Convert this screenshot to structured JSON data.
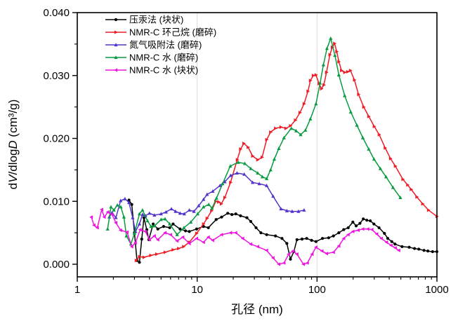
{
  "chart_data": {
    "type": "line",
    "title": "",
    "xlabel": "孔径 (nm)",
    "ylabel": "dV/dlogD (cm³/g)",
    "ylabel_segments": [
      {
        "t": "d"
      },
      {
        "t": "V",
        "italic": true
      },
      {
        "t": "/dlog"
      },
      {
        "t": "D",
        "italic": true
      },
      {
        "t": " (cm³/g)"
      }
    ],
    "axes": {
      "x": {
        "scale": "log",
        "min": 1,
        "max": 1000,
        "major_ticks": [
          1,
          10,
          100,
          1000
        ],
        "tick_labels": [
          "1",
          "10",
          "100",
          "1000"
        ]
      },
      "y": {
        "scale": "linear",
        "display_min": 0.0,
        "display_max": 0.04,
        "axis_min": -0.002,
        "major_step": 0.01,
        "minor_step": 0.005,
        "tick_labels": [
          "0.000",
          "0.010",
          "0.020",
          "0.030",
          "0.040"
        ]
      }
    },
    "grid": {
      "vertical_decades": [
        10,
        100
      ],
      "color": "#dcdcdc"
    },
    "legend_position": "top-left-inside",
    "series": [
      {
        "name": "压汞法 (块状)",
        "color": "#000000",
        "marker": "circle",
        "points": [
          [
            2.7,
            0.0102
          ],
          [
            2.85,
            0.0095
          ],
          [
            3.0,
            0.005
          ],
          [
            3.15,
            0.0006
          ],
          [
            3.3,
            0.0003
          ],
          [
            3.45,
            0.004
          ],
          [
            3.6,
            0.0074
          ],
          [
            3.8,
            0.0055
          ],
          [
            3.95,
            0.0039
          ],
          [
            4.3,
            0.0064
          ],
          [
            4.7,
            0.0056
          ],
          [
            5.25,
            0.006
          ],
          [
            5.9,
            0.0058
          ],
          [
            6.3,
            0.0064
          ],
          [
            7.2,
            0.0056
          ],
          [
            8.0,
            0.0053
          ],
          [
            8.6,
            0.0052
          ],
          [
            9.9,
            0.0056
          ],
          [
            11.3,
            0.006
          ],
          [
            12.4,
            0.0058
          ],
          [
            14.4,
            0.0071
          ],
          [
            16,
            0.0075
          ],
          [
            18,
            0.0081
          ],
          [
            19.5,
            0.0079
          ],
          [
            21,
            0.008
          ],
          [
            23,
            0.0077
          ],
          [
            26,
            0.0074
          ],
          [
            28,
            0.0068
          ],
          [
            31,
            0.0058
          ],
          [
            34,
            0.005
          ],
          [
            38,
            0.0047
          ],
          [
            45,
            0.0045
          ],
          [
            51,
            0.0041
          ],
          [
            56,
            0.0033
          ],
          [
            60,
            0.0008
          ],
          [
            64,
            0.002
          ],
          [
            68,
            0.0039
          ],
          [
            75,
            0.004
          ],
          [
            82,
            0.0041
          ],
          [
            90,
            0.0038
          ],
          [
            98,
            0.0036
          ],
          [
            111,
            0.0041
          ],
          [
            125,
            0.0042
          ],
          [
            137,
            0.0045
          ],
          [
            152,
            0.005
          ],
          [
            167,
            0.0055
          ],
          [
            182,
            0.0058
          ],
          [
            199,
            0.0067
          ],
          [
            212,
            0.0061
          ],
          [
            228,
            0.0065
          ],
          [
            243,
            0.0072
          ],
          [
            260,
            0.007
          ],
          [
            278,
            0.0069
          ],
          [
            298,
            0.0064
          ],
          [
            329,
            0.0058
          ],
          [
            365,
            0.0049
          ],
          [
            389,
            0.0041
          ],
          [
            420,
            0.0036
          ],
          [
            447,
            0.0032
          ],
          [
            512,
            0.0028
          ],
          [
            587,
            0.0027
          ],
          [
            650,
            0.0025
          ],
          [
            706,
            0.0024
          ],
          [
            780,
            0.0022
          ],
          [
            840,
            0.0021
          ],
          [
            920,
            0.002
          ],
          [
            1000,
            0.002
          ]
        ]
      },
      {
        "name": "NMR-C 环己烷 (磨碎)",
        "color": "#ee1c25",
        "marker": "triangle-right",
        "points": [
          [
            3.1,
            0.0006
          ],
          [
            3.3,
            0.0012
          ],
          [
            3.6,
            0.0011
          ],
          [
            4.1,
            0.0014
          ],
          [
            4.6,
            0.0016
          ],
          [
            5.4,
            0.0019
          ],
          [
            6.3,
            0.0023
          ],
          [
            7.0,
            0.0025
          ],
          [
            7.7,
            0.0028
          ],
          [
            8.6,
            0.0035
          ],
          [
            9.9,
            0.0049
          ],
          [
            11.3,
            0.0064
          ],
          [
            12.1,
            0.0073
          ],
          [
            13.2,
            0.0085
          ],
          [
            14.3,
            0.01
          ],
          [
            15.1,
            0.0099
          ],
          [
            15.9,
            0.0096
          ],
          [
            17,
            0.0106
          ],
          [
            19,
            0.013
          ],
          [
            21.6,
            0.0166
          ],
          [
            23,
            0.0183
          ],
          [
            24.5,
            0.0192
          ],
          [
            26.6,
            0.0186
          ],
          [
            29,
            0.0172
          ],
          [
            32,
            0.0166
          ],
          [
            34.8,
            0.017
          ],
          [
            38,
            0.0198
          ],
          [
            41,
            0.021
          ],
          [
            45,
            0.0216
          ],
          [
            50,
            0.0218
          ],
          [
            55,
            0.0216
          ],
          [
            60,
            0.022
          ],
          [
            66,
            0.0229
          ],
          [
            72,
            0.0241
          ],
          [
            78,
            0.0255
          ],
          [
            84,
            0.0275
          ],
          [
            88,
            0.0292
          ],
          [
            93,
            0.03
          ],
          [
            98,
            0.0301
          ],
          [
            104,
            0.0287
          ],
          [
            109,
            0.0279
          ],
          [
            114,
            0.0285
          ],
          [
            120,
            0.0305
          ],
          [
            128,
            0.0333
          ],
          [
            134,
            0.0345
          ],
          [
            140,
            0.0351
          ],
          [
            146,
            0.0338
          ],
          [
            152,
            0.0322
          ],
          [
            160,
            0.0308
          ],
          [
            170,
            0.0305
          ],
          [
            180,
            0.0306
          ],
          [
            190,
            0.0308
          ],
          [
            205,
            0.0293
          ],
          [
            222,
            0.027
          ],
          [
            245,
            0.025
          ],
          [
            270,
            0.0235
          ],
          [
            300,
            0.0219
          ],
          [
            330,
            0.0206
          ],
          [
            370,
            0.0185
          ],
          [
            410,
            0.0168
          ],
          [
            450,
            0.0156
          ],
          [
            520,
            0.0135
          ],
          [
            570,
            0.0126
          ],
          [
            610,
            0.0119
          ],
          [
            680,
            0.0107
          ],
          [
            760,
            0.0096
          ],
          [
            850,
            0.0086
          ],
          [
            1000,
            0.0076
          ]
        ]
      },
      {
        "name": "氮气吸附法 (磨碎)",
        "color": "#5333cb",
        "marker": "triangle-up",
        "points": [
          [
            1.85,
            0.0075
          ],
          [
            1.95,
            0.0082
          ],
          [
            2.1,
            0.0074
          ],
          [
            2.3,
            0.0101
          ],
          [
            2.5,
            0.0104
          ],
          [
            2.7,
            0.0098
          ],
          [
            2.9,
            0.0074
          ],
          [
            3.06,
            0.0052
          ],
          [
            3.3,
            0.0064
          ],
          [
            3.5,
            0.0079
          ],
          [
            3.7,
            0.0077
          ],
          [
            4.0,
            0.0081
          ],
          [
            4.4,
            0.0078
          ],
          [
            5.0,
            0.008
          ],
          [
            5.5,
            0.0083
          ],
          [
            6.1,
            0.0088
          ],
          [
            6.6,
            0.0084
          ],
          [
            7.2,
            0.0081
          ],
          [
            7.8,
            0.008
          ],
          [
            8.6,
            0.0086
          ],
          [
            9.4,
            0.0084
          ],
          [
            10.3,
            0.0093
          ],
          [
            11.3,
            0.0103
          ],
          [
            12.1,
            0.0111
          ],
          [
            13.5,
            0.0116
          ],
          [
            15.5,
            0.0125
          ],
          [
            17,
            0.0131
          ],
          [
            19,
            0.0141
          ],
          [
            21.5,
            0.0145
          ],
          [
            24.7,
            0.0143
          ],
          [
            29,
            0.013
          ],
          [
            33,
            0.0128
          ],
          [
            38,
            0.0125
          ],
          [
            43,
            0.0108
          ],
          [
            50,
            0.0088
          ],
          [
            56,
            0.0085
          ],
          [
            62,
            0.0084
          ],
          [
            70,
            0.0084
          ],
          [
            78,
            0.0086
          ]
        ]
      },
      {
        "name": "NMR-C 水 (磨碎)",
        "color": "#089b40",
        "marker": "triangle-up",
        "points": [
          [
            1.79,
            0.0056
          ],
          [
            1.91,
            0.0091
          ],
          [
            2.02,
            0.0086
          ],
          [
            2.16,
            0.0094
          ],
          [
            2.31,
            0.0091
          ],
          [
            2.45,
            0.0075
          ],
          [
            2.57,
            0.0045
          ],
          [
            2.8,
            0.0032
          ],
          [
            3.0,
            0.0049
          ],
          [
            3.3,
            0.008
          ],
          [
            3.5,
            0.0086
          ],
          [
            3.85,
            0.0069
          ],
          [
            4.12,
            0.006
          ],
          [
            4.4,
            0.0061
          ],
          [
            5.0,
            0.0071
          ],
          [
            5.4,
            0.0072
          ],
          [
            5.9,
            0.0064
          ],
          [
            6.8,
            0.0047
          ],
          [
            7.75,
            0.0058
          ],
          [
            8.85,
            0.0067
          ],
          [
            10.1,
            0.008
          ],
          [
            11.3,
            0.0091
          ],
          [
            12.5,
            0.0095
          ],
          [
            13.3,
            0.0089
          ],
          [
            14.5,
            0.0105
          ],
          [
            16.3,
            0.0128
          ],
          [
            18.9,
            0.0156
          ],
          [
            22,
            0.0162
          ],
          [
            25,
            0.016
          ],
          [
            28,
            0.0152
          ],
          [
            32,
            0.0145
          ],
          [
            35,
            0.0139
          ],
          [
            38,
            0.0136
          ],
          [
            41,
            0.015
          ],
          [
            44,
            0.0167
          ],
          [
            48,
            0.0184
          ],
          [
            53,
            0.0201
          ],
          [
            61,
            0.0216
          ],
          [
            67,
            0.0212
          ],
          [
            73,
            0.0206
          ],
          [
            80,
            0.0213
          ],
          [
            88,
            0.0231
          ],
          [
            98,
            0.0255
          ],
          [
            106,
            0.0288
          ],
          [
            113,
            0.0317
          ],
          [
            121,
            0.0343
          ],
          [
            130,
            0.0359
          ],
          [
            141,
            0.0332
          ],
          [
            152,
            0.0301
          ],
          [
            170,
            0.0268
          ],
          [
            191,
            0.0242
          ],
          [
            215,
            0.0221
          ],
          [
            241,
            0.0201
          ],
          [
            270,
            0.0183
          ],
          [
            299,
            0.0167
          ],
          [
            337,
            0.0152
          ],
          [
            376,
            0.0139
          ],
          [
            430,
            0.0122
          ],
          [
            495,
            0.0106
          ]
        ]
      },
      {
        "name": "NMR-C 水 (块状)",
        "color": "#ef12e0",
        "marker": "triangle-left",
        "points": [
          [
            1.31,
            0.0075
          ],
          [
            1.38,
            0.0062
          ],
          [
            1.47,
            0.0058
          ],
          [
            1.6,
            0.0087
          ],
          [
            1.68,
            0.0075
          ],
          [
            1.8,
            0.0083
          ],
          [
            1.95,
            0.0079
          ],
          [
            2.1,
            0.0066
          ],
          [
            2.3,
            0.0054
          ],
          [
            2.6,
            0.0051
          ],
          [
            2.85,
            0.0028
          ],
          [
            3.05,
            0.0034
          ],
          [
            3.35,
            0.0055
          ],
          [
            3.7,
            0.0052
          ],
          [
            4.0,
            0.0039
          ],
          [
            4.4,
            0.0045
          ],
          [
            4.7,
            0.0039
          ],
          [
            5.4,
            0.005
          ],
          [
            6.0,
            0.0047
          ],
          [
            6.8,
            0.0037
          ],
          [
            7.6,
            0.0043
          ],
          [
            8.6,
            0.0033
          ],
          [
            9.9,
            0.0041
          ],
          [
            11.3,
            0.0035
          ],
          [
            12.4,
            0.0043
          ],
          [
            13.5,
            0.0038
          ],
          [
            16,
            0.0047
          ],
          [
            19,
            0.005
          ],
          [
            21,
            0.005
          ],
          [
            24,
            0.0041
          ],
          [
            28,
            0.0032
          ],
          [
            32,
            0.0028
          ],
          [
            38,
            0.0022
          ],
          [
            43,
            0.001
          ],
          [
            48,
            0.0
          ],
          [
            53,
            0.0002
          ],
          [
            58,
            0.0016
          ],
          [
            63,
            0.0021
          ],
          [
            68,
            0.0016
          ],
          [
            77,
            0.0
          ],
          [
            83,
            0.0002
          ],
          [
            91,
            0.0016
          ],
          [
            98,
            0.0027
          ],
          [
            110,
            0.0021
          ],
          [
            120,
            0.0017
          ],
          [
            137,
            0.0019
          ],
          [
            152,
            0.0029
          ],
          [
            167,
            0.0041
          ],
          [
            182,
            0.0047
          ],
          [
            199,
            0.0052
          ],
          [
            220,
            0.0054
          ],
          [
            241,
            0.0056
          ],
          [
            265,
            0.0056
          ],
          [
            287,
            0.0055
          ],
          [
            315,
            0.0048
          ],
          [
            344,
            0.0041
          ],
          [
            380,
            0.0035
          ],
          [
            415,
            0.003
          ],
          [
            450,
            0.0026
          ],
          [
            481,
            0.0022
          ]
        ]
      }
    ]
  }
}
